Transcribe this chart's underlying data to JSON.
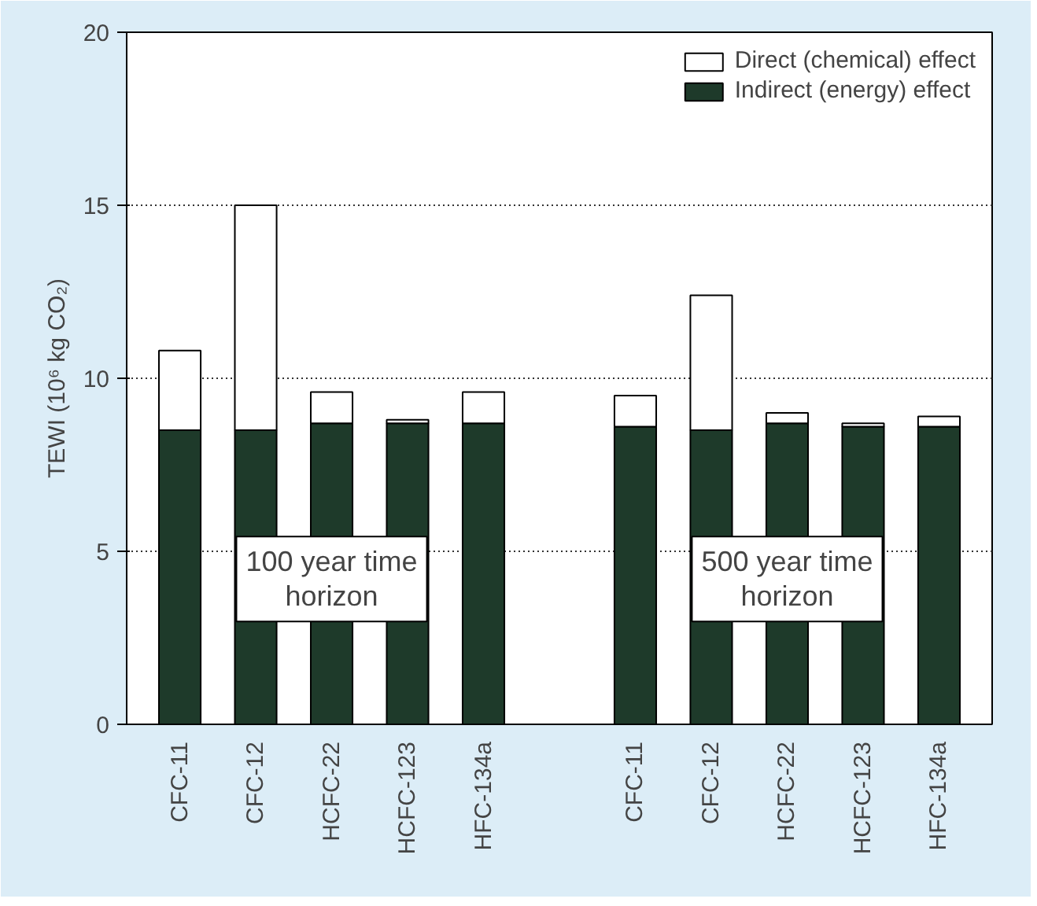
{
  "chart_data": {
    "type": "bar",
    "stacked": true,
    "ylabel": "TEWI (10⁶ kg CO₂)",
    "categories": [
      "CFC-11",
      "CFC-12",
      "HCFC-22",
      "HCFC-123",
      "HFC-134a",
      null,
      "CFC-11",
      "CFC-12",
      "HCFC-22",
      "HCFC-123",
      "HFC-134a"
    ],
    "series": [
      {
        "name": "Indirect (energy) effect",
        "color": "#1e3a2a",
        "values": [
          8.5,
          8.5,
          8.7,
          8.7,
          8.7,
          null,
          8.6,
          8.5,
          8.7,
          8.6,
          8.6
        ]
      },
      {
        "name": "Direct (chemical) effect",
        "color": "#ffffff",
        "values": [
          2.3,
          6.5,
          0.9,
          0.1,
          0.9,
          null,
          0.9,
          3.9,
          0.3,
          0.1,
          0.3
        ]
      }
    ],
    "ylim": [
      0,
      20
    ],
    "yticks": [
      0,
      5,
      10,
      15,
      20
    ],
    "grid": "y",
    "legend": "top right",
    "annotations": [
      "100 year time\nhorizon",
      "500 year time\nhorizon"
    ]
  }
}
